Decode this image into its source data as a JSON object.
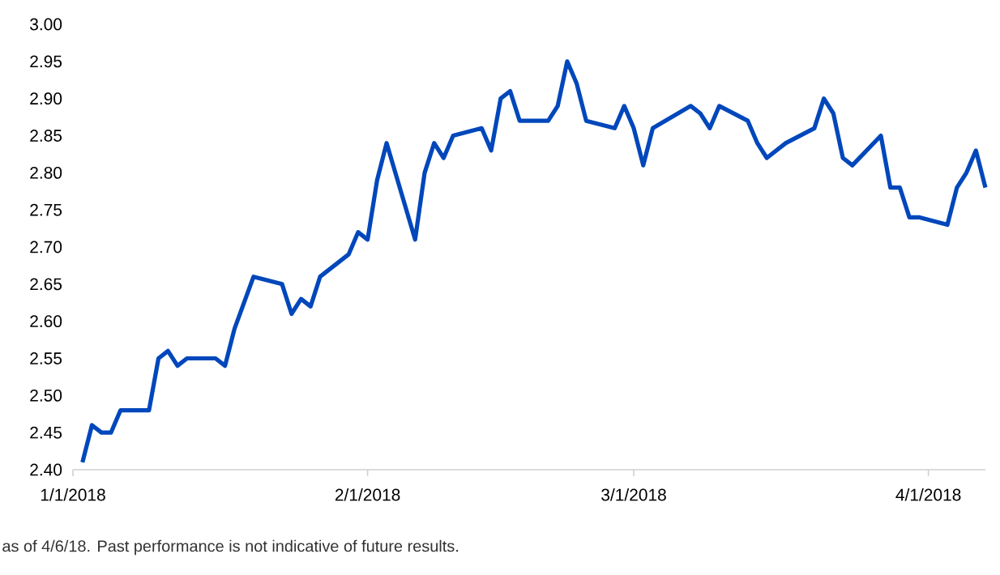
{
  "chart_data": {
    "type": "line",
    "x": [
      "2018-01-02",
      "2018-01-03",
      "2018-01-04",
      "2018-01-05",
      "2018-01-06",
      "2018-01-09",
      "2018-01-10",
      "2018-01-11",
      "2018-01-12",
      "2018-01-13",
      "2018-01-16",
      "2018-01-17",
      "2018-01-18",
      "2018-01-20",
      "2018-01-23",
      "2018-01-24",
      "2018-01-25",
      "2018-01-26",
      "2018-01-27",
      "2018-01-30",
      "2018-01-31",
      "2018-02-01",
      "2018-02-02",
      "2018-02-03",
      "2018-02-06",
      "2018-02-07",
      "2018-02-08",
      "2018-02-09",
      "2018-02-10",
      "2018-02-13",
      "2018-02-14",
      "2018-02-15",
      "2018-02-16",
      "2018-02-17",
      "2018-02-20",
      "2018-02-21",
      "2018-02-22",
      "2018-02-23",
      "2018-02-24",
      "2018-02-27",
      "2018-02-28",
      "2018-03-01",
      "2018-03-02",
      "2018-03-03",
      "2018-03-07",
      "2018-03-08",
      "2018-03-09",
      "2018-03-10",
      "2018-03-13",
      "2018-03-14",
      "2018-03-15",
      "2018-03-17",
      "2018-03-20",
      "2018-03-21",
      "2018-03-22",
      "2018-03-23",
      "2018-03-24",
      "2018-03-27",
      "2018-03-28",
      "2018-03-29",
      "2018-03-30",
      "2018-03-31",
      "2018-04-03",
      "2018-04-04",
      "2018-04-05",
      "2018-04-06",
      "2018-04-07"
    ],
    "series": [
      {
        "color": "#0047bb",
        "values": [
          2.41,
          2.46,
          2.45,
          2.45,
          2.48,
          2.48,
          2.55,
          2.56,
          2.54,
          2.55,
          2.55,
          2.54,
          2.59,
          2.66,
          2.65,
          2.61,
          2.63,
          2.62,
          2.66,
          2.69,
          2.72,
          2.71,
          2.79,
          2.84,
          2.71,
          2.8,
          2.84,
          2.82,
          2.85,
          2.86,
          2.83,
          2.9,
          2.91,
          2.87,
          2.87,
          2.89,
          2.95,
          2.92,
          2.87,
          2.86,
          2.89,
          2.86,
          2.81,
          2.86,
          2.89,
          2.88,
          2.86,
          2.89,
          2.87,
          2.84,
          2.82,
          2.84,
          2.86,
          2.9,
          2.88,
          2.82,
          2.81,
          2.85,
          2.78,
          2.78,
          2.74,
          2.74,
          2.73,
          2.78,
          2.8,
          2.83,
          2.78
        ]
      }
    ],
    "xlim": [
      "2018-01-01",
      "2018-04-07"
    ],
    "xticks": [
      {
        "value": "2018-01-01",
        "label": "1/1/2018"
      },
      {
        "value": "2018-02-01",
        "label": "2/1/2018"
      },
      {
        "value": "2018-03-01",
        "label": "3/1/2018"
      },
      {
        "value": "2018-04-01",
        "label": "4/1/2018"
      }
    ],
    "ylim": [
      2.4,
      3.0
    ],
    "yticks": [
      {
        "value": 2.4,
        "label": "2.40"
      },
      {
        "value": 2.45,
        "label": "2.45"
      },
      {
        "value": 2.5,
        "label": "2.50"
      },
      {
        "value": 2.55,
        "label": "2.55"
      },
      {
        "value": 2.6,
        "label": "2.60"
      },
      {
        "value": 2.65,
        "label": "2.65"
      },
      {
        "value": 2.7,
        "label": "2.70"
      },
      {
        "value": 2.75,
        "label": "2.75"
      },
      {
        "value": 2.8,
        "label": "2.80"
      },
      {
        "value": 2.85,
        "label": "2.85"
      },
      {
        "value": 2.9,
        "label": "2.90"
      },
      {
        "value": 2.95,
        "label": "2.95"
      },
      {
        "value": 3.0,
        "label": "3.00"
      }
    ],
    "grid": false,
    "marker": "none",
    "line_style": "solid",
    "annotations": [
      "as of 4/6/18. Past performance is not indicative of future results."
    ]
  }
}
